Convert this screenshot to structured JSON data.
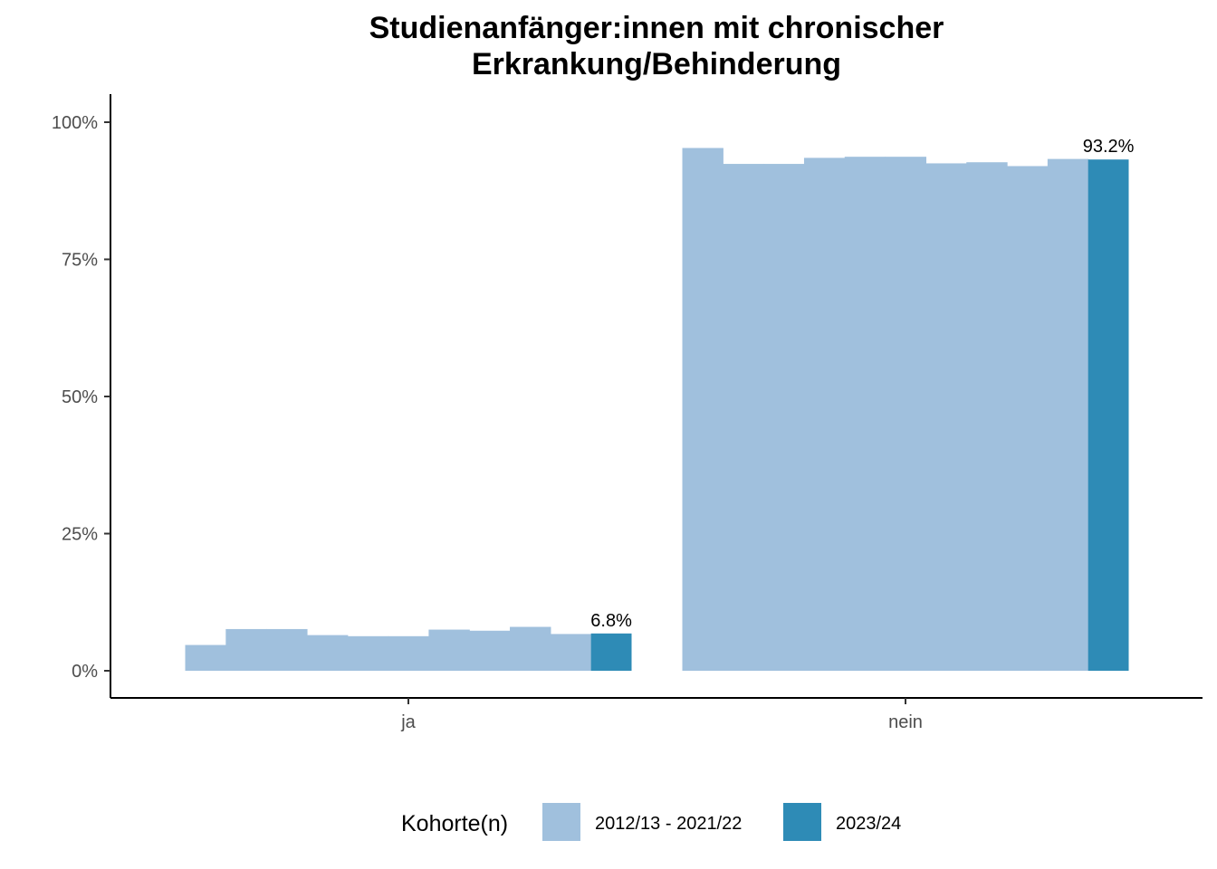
{
  "chart_data": {
    "type": "bar",
    "title_lines": [
      "Studienanfänger:innen mit chronischer",
      "Erkrankung/Behinderung"
    ],
    "xlabel": "",
    "ylabel": "",
    "categories": [
      "ja",
      "nein"
    ],
    "ylim": [
      0,
      1.05
    ],
    "y_ticks": [
      {
        "value": 0,
        "label": "0%"
      },
      {
        "value": 0.25,
        "label": "25%"
      },
      {
        "value": 0.5,
        "label": "50%"
      },
      {
        "value": 0.75,
        "label": "75%"
      },
      {
        "value": 1.0,
        "label": "100%"
      }
    ],
    "series": [
      {
        "name": "2012/13 - 2021/22",
        "color": "#a0c0dd",
        "kind": "history",
        "values": [
          [
            0.047,
            0.076,
            0.076,
            0.065,
            0.063,
            0.063,
            0.075,
            0.073,
            0.08,
            0.067
          ],
          [
            0.953,
            0.924,
            0.924,
            0.935,
            0.937,
            0.937,
            0.925,
            0.927,
            0.92,
            0.933
          ]
        ]
      },
      {
        "name": "2023/24",
        "color": "#2e8bb6",
        "kind": "current",
        "values": [
          0.068,
          0.932
        ],
        "labels": [
          "6.8%",
          "93.2%"
        ]
      }
    ],
    "legend": {
      "title": "Kohorte(n)",
      "position": "bottom"
    },
    "grid": false
  }
}
